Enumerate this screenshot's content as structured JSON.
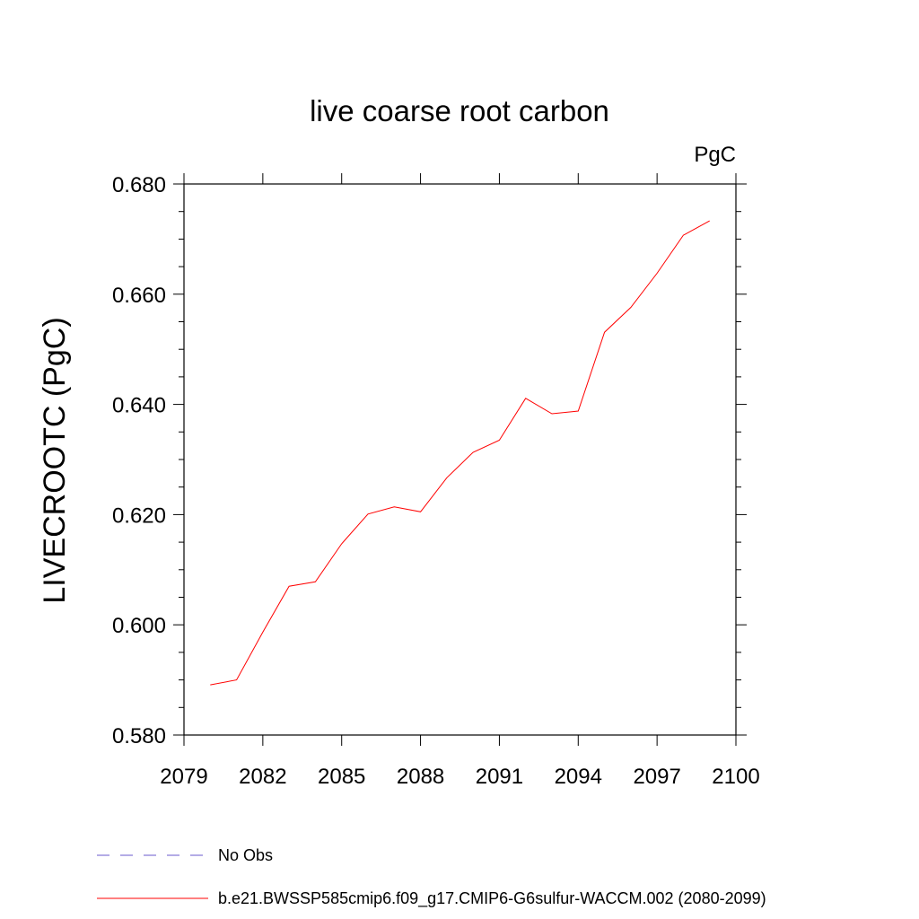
{
  "chart_data": {
    "type": "line",
    "title": "live coarse root carbon",
    "units_label": "PgC",
    "ylabel": "LIVECROOTC  (PgC)",
    "xlabel": "",
    "xlim": [
      2079,
      2100
    ],
    "ylim": [
      0.58,
      0.68
    ],
    "x_ticks": [
      "2079",
      "2082",
      "2085",
      "2088",
      "2091",
      "2094",
      "2097",
      "2100"
    ],
    "y_ticks": [
      "0.580",
      "0.600",
      "0.620",
      "0.640",
      "0.660",
      "0.680"
    ],
    "grid": false,
    "legend_position": "bottom-left",
    "series": [
      {
        "name": "b.e21.BWSSP585cmip6.f09_g17.CMIP6-G6sulfur-WACCM.002 (2080-2099)",
        "color": "#ff0000",
        "style": "solid",
        "x": [
          2080,
          2081,
          2082,
          2083,
          2084,
          2085,
          2086,
          2087,
          2088,
          2089,
          2090,
          2091,
          2092,
          2093,
          2094,
          2095,
          2096,
          2097,
          2098,
          2099
        ],
        "values": [
          0.5891,
          0.59,
          0.5987,
          0.607,
          0.6078,
          0.6147,
          0.6201,
          0.6214,
          0.6205,
          0.6267,
          0.6313,
          0.6335,
          0.6411,
          0.6383,
          0.6388,
          0.6531,
          0.6576,
          0.6638,
          0.6707,
          0.6733
        ]
      }
    ],
    "legend": [
      {
        "label": "No Obs",
        "color": "#6a5acd",
        "style": "dashed"
      },
      {
        "label": "b.e21.BWSSP585cmip6.f09_g17.CMIP6-G6sulfur-WACCM.002 (2080-2099)",
        "color": "#ff0000",
        "style": "solid"
      }
    ]
  }
}
